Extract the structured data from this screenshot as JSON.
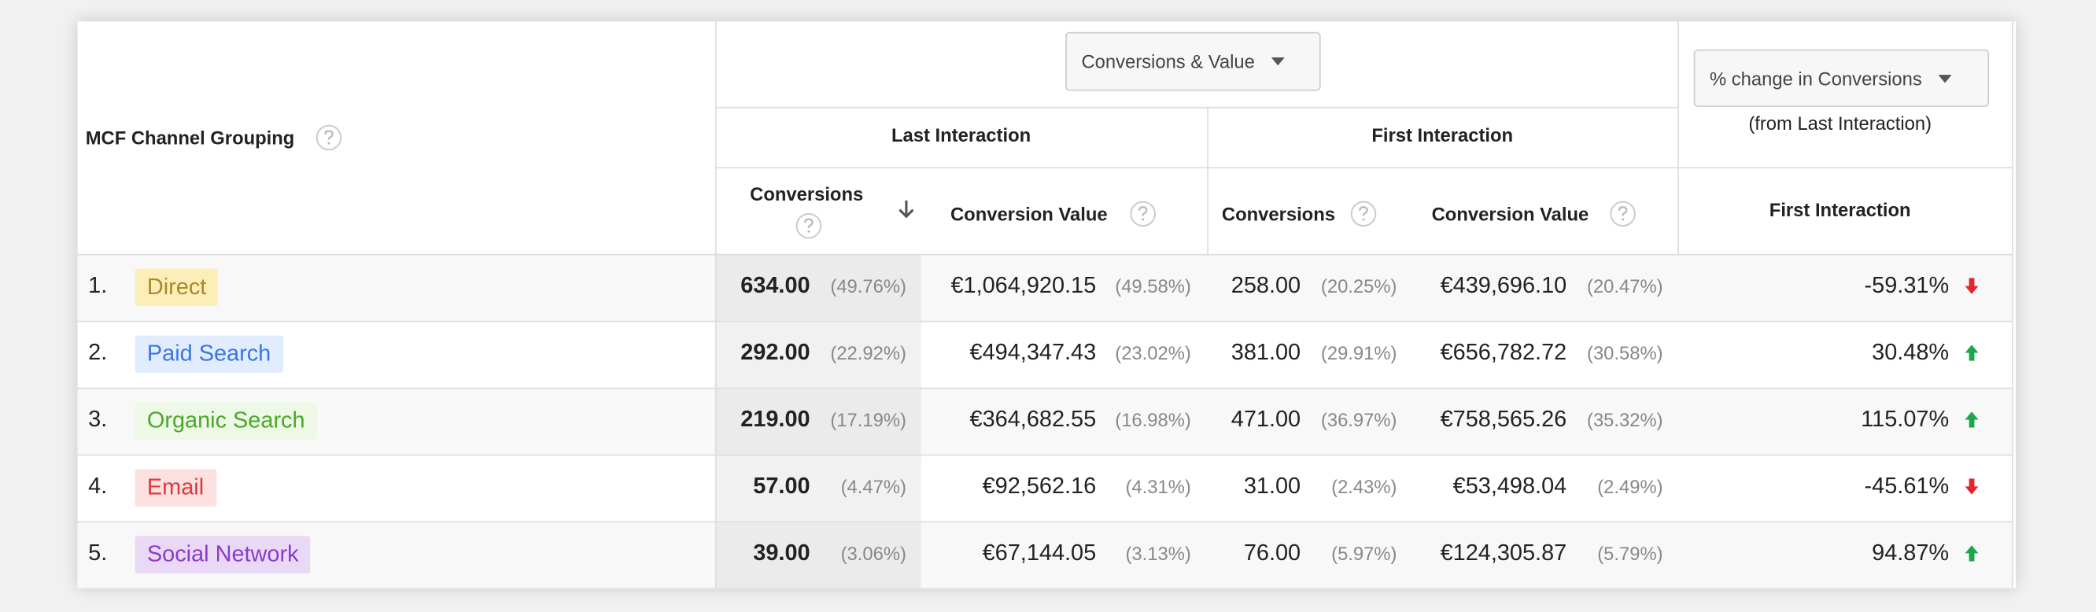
{
  "header": {
    "dimension": "MCF Channel Grouping",
    "metric_dropdown": "Conversions & Value",
    "compare_dropdown": "% change in Conversions",
    "compare_note": "(from Last Interaction)",
    "groups": [
      "Last Interaction",
      "First Interaction"
    ],
    "columns": [
      "Conversions",
      "Conversion Value",
      "Conversions",
      "Conversion Value",
      "First Interaction"
    ]
  },
  "rows": [
    {
      "index": "1.",
      "channel": "Direct",
      "li_conversions": "634.00",
      "li_conversions_share": "(49.76%)",
      "li_value": "€1,064,920.15",
      "li_value_share": "(49.58%)",
      "fi_conversions": "258.00",
      "fi_conversions_share": "(20.25%)",
      "fi_value": "€439,696.10",
      "fi_value_share": "(20.47%)",
      "change": "-59.31%",
      "trend": "down",
      "tag_bg": "#fbeeb6",
      "tag_color": "#a8882a"
    },
    {
      "index": "2.",
      "channel": "Paid Search",
      "li_conversions": "292.00",
      "li_conversions_share": "(22.92%)",
      "li_value": "€494,347.43",
      "li_value_share": "(23.02%)",
      "fi_conversions": "381.00",
      "fi_conversions_share": "(29.91%)",
      "fi_value": "€656,782.72",
      "fi_value_share": "(30.58%)",
      "change": "30.48%",
      "trend": "up",
      "tag_bg": "#e2ecff",
      "tag_color": "#3a76e2"
    },
    {
      "index": "3.",
      "channel": "Organic Search",
      "li_conversions": "219.00",
      "li_conversions_share": "(17.19%)",
      "li_value": "€364,682.55",
      "li_value_share": "(16.98%)",
      "fi_conversions": "471.00",
      "fi_conversions_share": "(36.97%)",
      "fi_value": "€758,565.26",
      "fi_value_share": "(35.32%)",
      "change": "115.07%",
      "trend": "up",
      "tag_bg": "#eef8e6",
      "tag_color": "#4aa82a"
    },
    {
      "index": "4.",
      "channel": "Email",
      "li_conversions": "57.00",
      "li_conversions_share": "(4.47%)",
      "li_value": "€92,562.16",
      "li_value_share": "(4.31%)",
      "fi_conversions": "31.00",
      "fi_conversions_share": "(2.43%)",
      "fi_value": "€53,498.04",
      "fi_value_share": "(2.49%)",
      "change": "-45.61%",
      "trend": "down",
      "tag_bg": "#fde0e0",
      "tag_color": "#e0393b"
    },
    {
      "index": "5.",
      "channel": "Social Network",
      "li_conversions": "39.00",
      "li_conversions_share": "(3.06%)",
      "li_value": "€67,144.05",
      "li_value_share": "(3.13%)",
      "fi_conversions": "76.00",
      "fi_conversions_share": "(5.97%)",
      "fi_value": "€124,305.87",
      "fi_value_share": "(5.79%)",
      "change": "94.87%",
      "trend": "up",
      "tag_bg": "#e9d9f7",
      "tag_color": "#8a3bcc"
    }
  ]
}
